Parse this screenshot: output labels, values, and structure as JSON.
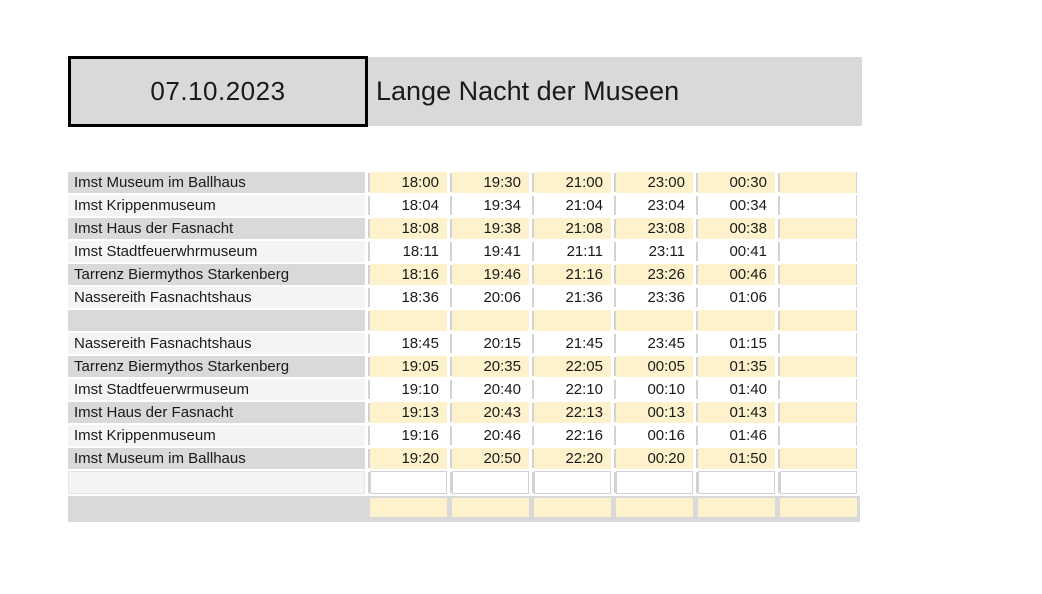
{
  "header": {
    "date": "07.10.2023",
    "title": "Lange Nacht der Museen"
  },
  "colors": {
    "header_fill": "#d9d9d9",
    "name_odd_fill": "#d9d9d9",
    "name_even_fill": "#f4f4f7",
    "time_odd_fill": "#fdf2cc",
    "time_even_fill": "#ffffff",
    "gridline": "#d2d2d2",
    "text": "#1a1a1a",
    "date_box_border": "#000000"
  },
  "table": {
    "rows": [
      {
        "name": "Imst Museum im Ballhaus",
        "times": [
          "18:00",
          "19:30",
          "21:00",
          "23:00",
          "00:30",
          ""
        ]
      },
      {
        "name": "Imst Krippenmuseum",
        "times": [
          "18:04",
          "19:34",
          "21:04",
          "23:04",
          "00:34",
          ""
        ]
      },
      {
        "name": "Imst Haus der Fasnacht",
        "times": [
          "18:08",
          "19:38",
          "21:08",
          "23:08",
          "00:38",
          ""
        ]
      },
      {
        "name": "Imst Stadtfeuerwhrmuseum",
        "times": [
          "18:11",
          "19:41",
          "21:11",
          "23:11",
          "00:41",
          ""
        ]
      },
      {
        "name": "Tarrenz Biermythos Starkenberg",
        "times": [
          "18:16",
          "19:46",
          "21:16",
          "23:26",
          "00:46",
          ""
        ]
      },
      {
        "name": "Nassereith Fasnachtshaus",
        "times": [
          "18:36",
          "20:06",
          "21:36",
          "23:36",
          "01:06",
          ""
        ]
      },
      {
        "name": "",
        "times": [
          "",
          "",
          "",
          "",
          "",
          ""
        ]
      },
      {
        "name": "Nassereith Fasnachtshaus",
        "times": [
          "18:45",
          "20:15",
          "21:45",
          "23:45",
          "01:15",
          ""
        ]
      },
      {
        "name": "Tarrenz Biermythos Starkenberg",
        "times": [
          "19:05",
          "20:35",
          "22:05",
          "00:05",
          "01:35",
          ""
        ]
      },
      {
        "name": "Imst Stadtfeuerwrmuseum",
        "times": [
          "19:10",
          "20:40",
          "22:10",
          "00:10",
          "01:40",
          ""
        ]
      },
      {
        "name": "Imst Haus der Fasnacht",
        "times": [
          "19:13",
          "20:43",
          "22:13",
          "00:13",
          "01:43",
          ""
        ]
      },
      {
        "name": "Imst Krippenmuseum",
        "times": [
          "19:16",
          "20:46",
          "22:16",
          "00:16",
          "01:46",
          ""
        ]
      },
      {
        "name": "Imst Museum im Ballhaus",
        "times": [
          "19:20",
          "20:50",
          "22:20",
          "00:20",
          "01:50",
          ""
        ]
      },
      {
        "name": "",
        "times": [
          "",
          "",
          "",
          "",
          "",
          ""
        ]
      },
      {
        "name": "",
        "times": [
          "",
          "",
          "",
          "",
          "",
          ""
        ]
      }
    ]
  }
}
